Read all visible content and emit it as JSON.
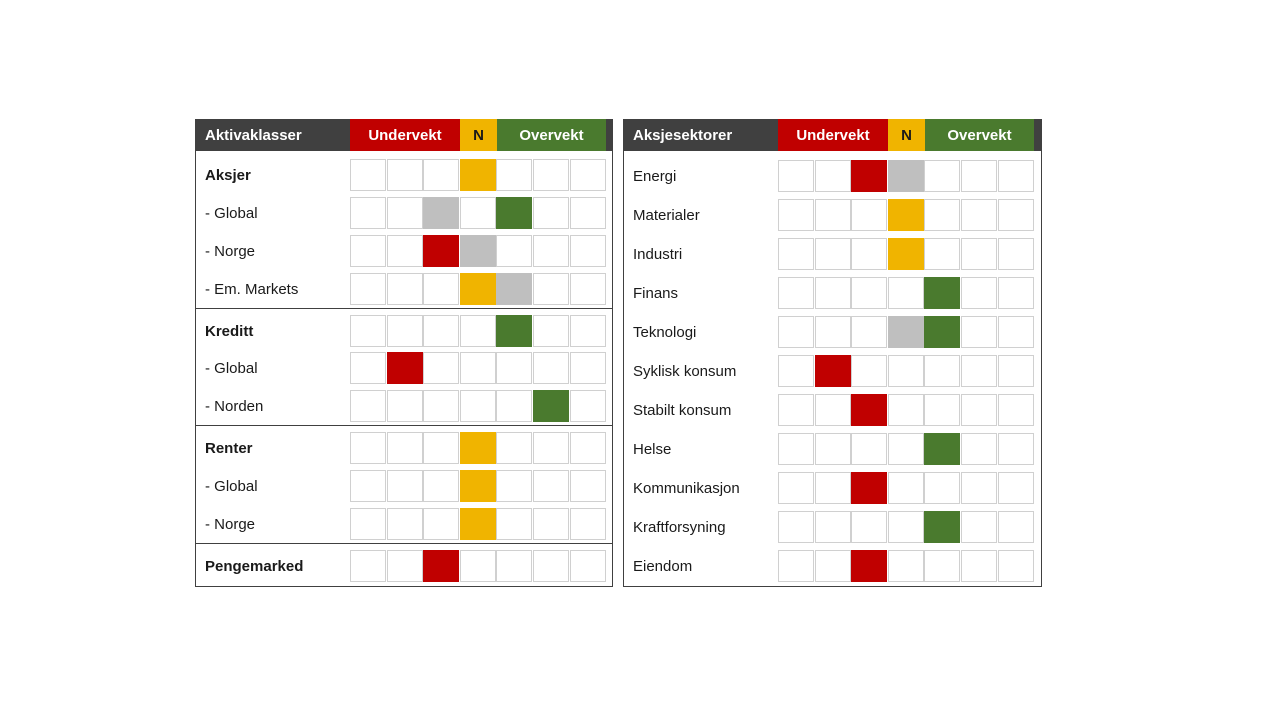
{
  "left": {
    "headers": {
      "title": "Aktivaklasser",
      "under": "Undervekt",
      "neutral": "N",
      "over": "Overvekt"
    },
    "rows": [
      {
        "label": "Aksjer",
        "bold": true,
        "cells": [
          "",
          "",
          "",
          "yellow",
          "",
          "",
          ""
        ]
      },
      {
        "label": "- Global",
        "bold": false,
        "cells": [
          "",
          "",
          "grey",
          "",
          "green",
          "",
          ""
        ]
      },
      {
        "label": "- Norge",
        "bold": false,
        "cells": [
          "",
          "",
          "red",
          "grey",
          "",
          "",
          ""
        ]
      },
      {
        "label": "- Em. Markets",
        "bold": false,
        "cells": [
          "",
          "",
          "",
          "yellow",
          "grey",
          "",
          ""
        ]
      },
      {
        "label": "Kreditt",
        "bold": true,
        "cells": [
          "",
          "",
          "",
          "",
          "green",
          "",
          ""
        ]
      },
      {
        "label": "- Global",
        "bold": false,
        "cells": [
          "",
          "red",
          "",
          "",
          "",
          "",
          ""
        ]
      },
      {
        "label": "- Norden",
        "bold": false,
        "cells": [
          "",
          "",
          "",
          "",
          "",
          "green",
          ""
        ]
      },
      {
        "label": "Renter",
        "bold": true,
        "cells": [
          "",
          "",
          "",
          "yellow",
          "",
          "",
          ""
        ]
      },
      {
        "label": "- Global",
        "bold": false,
        "cells": [
          "",
          "",
          "",
          "yellow",
          "",
          "",
          ""
        ]
      },
      {
        "label": "- Norge",
        "bold": false,
        "cells": [
          "",
          "",
          "",
          "yellow",
          "",
          "",
          ""
        ]
      },
      {
        "label": "Pengemarked",
        "bold": true,
        "cells": [
          "",
          "",
          "red",
          "",
          "",
          "",
          ""
        ]
      }
    ]
  },
  "right": {
    "headers": {
      "title": "Aksjesektorer",
      "under": "Undervekt",
      "neutral": "N",
      "over": "Overvekt"
    },
    "rows": [
      {
        "label": "Energi",
        "cells": [
          "",
          "",
          "red",
          "grey",
          "",
          "",
          ""
        ]
      },
      {
        "label": "Materialer",
        "cells": [
          "",
          "",
          "",
          "yellow",
          "",
          "",
          ""
        ]
      },
      {
        "label": "Industri",
        "cells": [
          "",
          "",
          "",
          "yellow",
          "",
          "",
          ""
        ]
      },
      {
        "label": "Finans",
        "cells": [
          "",
          "",
          "",
          "",
          "green",
          "",
          ""
        ]
      },
      {
        "label": "Teknologi",
        "cells": [
          "",
          "",
          "",
          "grey",
          "green",
          "",
          ""
        ]
      },
      {
        "label": "Syklisk konsum",
        "cells": [
          "",
          "red",
          "",
          "",
          "",
          "",
          ""
        ]
      },
      {
        "label": "Stabilt konsum",
        "cells": [
          "",
          "",
          "red",
          "",
          "",
          "",
          ""
        ]
      },
      {
        "label": "Helse",
        "cells": [
          "",
          "",
          "",
          "",
          "green",
          "",
          ""
        ]
      },
      {
        "label": "Kommunikasjon",
        "cells": [
          "",
          "",
          "red",
          "",
          "",
          "",
          ""
        ]
      },
      {
        "label": "Kraftforsyning",
        "cells": [
          "",
          "",
          "",
          "",
          "green",
          "",
          ""
        ]
      },
      {
        "label": "Eiendom",
        "cells": [
          "",
          "",
          "red",
          "",
          "",
          "",
          ""
        ]
      }
    ]
  },
  "colors": {
    "red": "#c00000",
    "yellow": "#f0b400",
    "green": "#4a7a2e",
    "grey": "#bfbfbf",
    "header": "#404040"
  }
}
